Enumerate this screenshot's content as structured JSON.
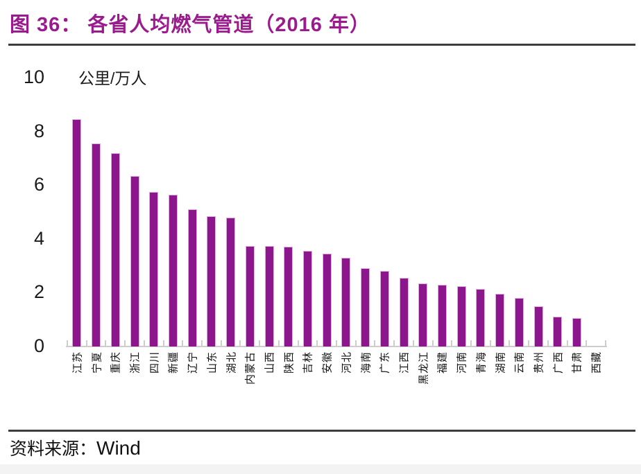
{
  "figure": {
    "title": "图 36： 各省人均燃气管道（2016 年）",
    "title_color": "#9b1b8f"
  },
  "source": {
    "label": "资料来源：",
    "value": "Wind"
  },
  "chart_data": {
    "type": "bar",
    "title": "各省人均燃气管道（2016 年）",
    "unit": "公里/万人",
    "xlabel": "",
    "ylabel": "公里/万人",
    "ylim": [
      0,
      10
    ],
    "yticks": [
      0,
      2,
      4,
      6,
      8,
      10
    ],
    "grid": false,
    "legend": "none",
    "bar_color": "#8c178c",
    "bar_border_color": "#dfaedf",
    "axis_color": "#cdcdcd",
    "categories": [
      "江苏",
      "宁夏",
      "重庆",
      "浙江",
      "四川",
      "新疆",
      "辽宁",
      "山东",
      "湖北",
      "内蒙古",
      "山西",
      "陕西",
      "吉林",
      "安徽",
      "河北",
      "海南",
      "广东",
      "江西",
      "黑龙江",
      "福建",
      "河南",
      "青海",
      "湖南",
      "云南",
      "贵州",
      "广西",
      "甘肃",
      "西藏"
    ],
    "values": [
      8.45,
      7.55,
      7.2,
      6.35,
      5.75,
      5.65,
      5.1,
      4.85,
      4.8,
      3.75,
      3.75,
      3.7,
      3.55,
      3.45,
      3.3,
      2.9,
      2.8,
      2.55,
      2.35,
      2.3,
      2.25,
      2.15,
      1.95,
      1.8,
      1.5,
      1.1,
      1.05,
      0
    ]
  }
}
